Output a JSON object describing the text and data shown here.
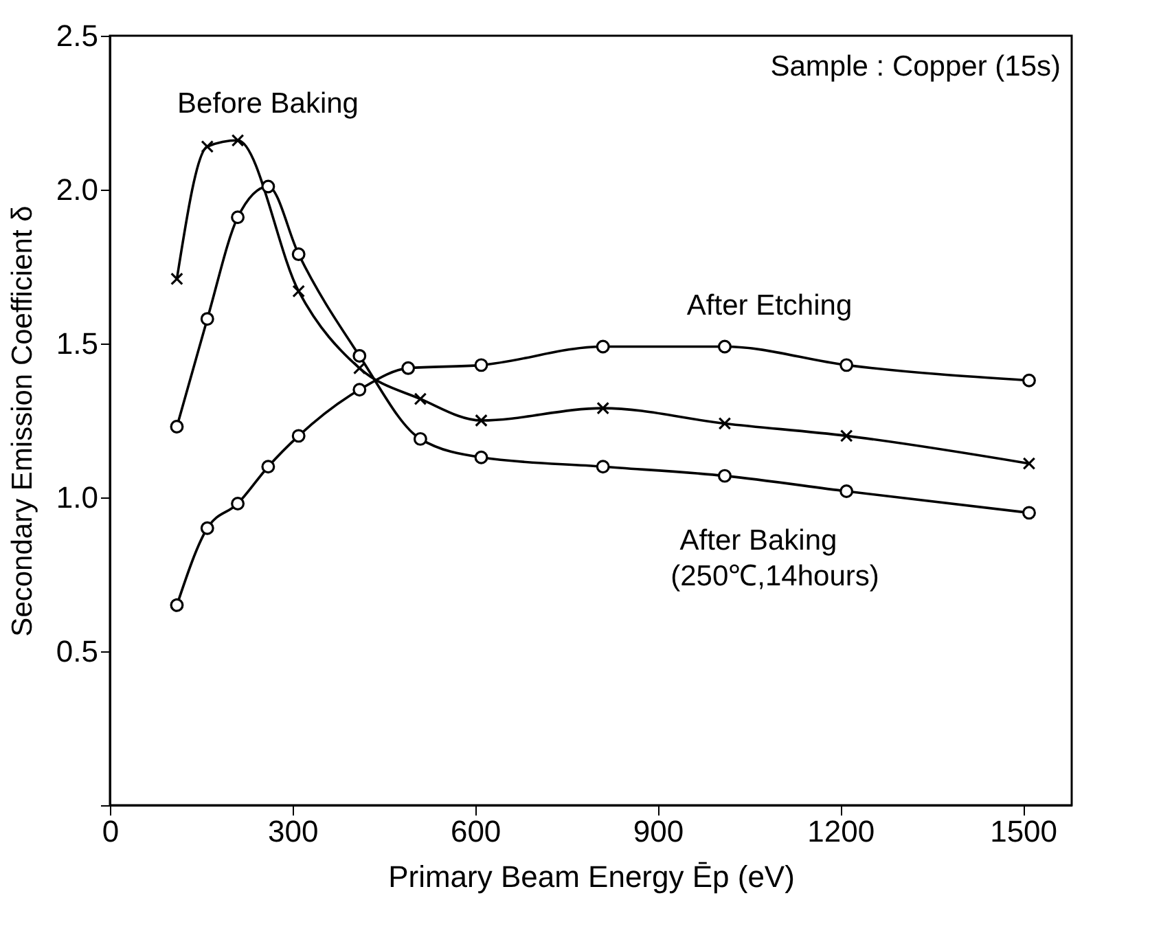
{
  "chart_data": {
    "type": "line",
    "xlabel": "Primary Beam Energy Ēp (eV)",
    "ylabel": "Secondary Emission Coefficient δ",
    "xlim": [
      0,
      1580
    ],
    "xticks": [
      0,
      300,
      600,
      900,
      1200,
      1500
    ],
    "ylim": [
      0,
      2.5
    ],
    "yticks": [
      {
        "value": 0,
        "label": null
      },
      {
        "value": 0.5,
        "label": "0.5"
      },
      {
        "value": 1,
        "label": "1.0"
      },
      {
        "value": 1.5,
        "label": "1.5"
      },
      {
        "value": 2,
        "label": "2.0"
      },
      {
        "value": 2.5,
        "label": "2.5"
      }
    ],
    "grid": false,
    "line_style": "solid",
    "series": [
      {
        "color": "#000000",
        "marker": "cross",
        "x": [
          110,
          160,
          210,
          310,
          410,
          510,
          610,
          810,
          1010,
          1210,
          1510
        ],
        "values": [
          1.71,
          2.14,
          2.16,
          1.67,
          1.42,
          1.32,
          1.25,
          1.29,
          1.24,
          1.2,
          1.11
        ]
      },
      {
        "color": "#000000",
        "marker": "circle",
        "x": [
          110,
          160,
          210,
          260,
          310,
          410,
          510,
          610,
          810,
          1010,
          1210,
          1510
        ],
        "values": [
          1.23,
          1.58,
          1.91,
          2.01,
          1.79,
          1.46,
          1.19,
          1.13,
          1.1,
          1.07,
          1.02,
          0.95
        ]
      },
      {
        "color": "#000000",
        "marker": "circle",
        "x": [
          110,
          160,
          210,
          260,
          310,
          410,
          490,
          610,
          810,
          1010,
          1210,
          1510
        ],
        "values": [
          0.65,
          0.9,
          0.98,
          1.1,
          1.2,
          1.35,
          1.42,
          1.43,
          1.49,
          1.49,
          1.43,
          1.38
        ]
      }
    ],
    "annotations": [
      "Before Baking",
      "After Etching",
      "After Baking",
      "(250℃,14hours)",
      "Sample : Copper (15s)"
    ]
  }
}
